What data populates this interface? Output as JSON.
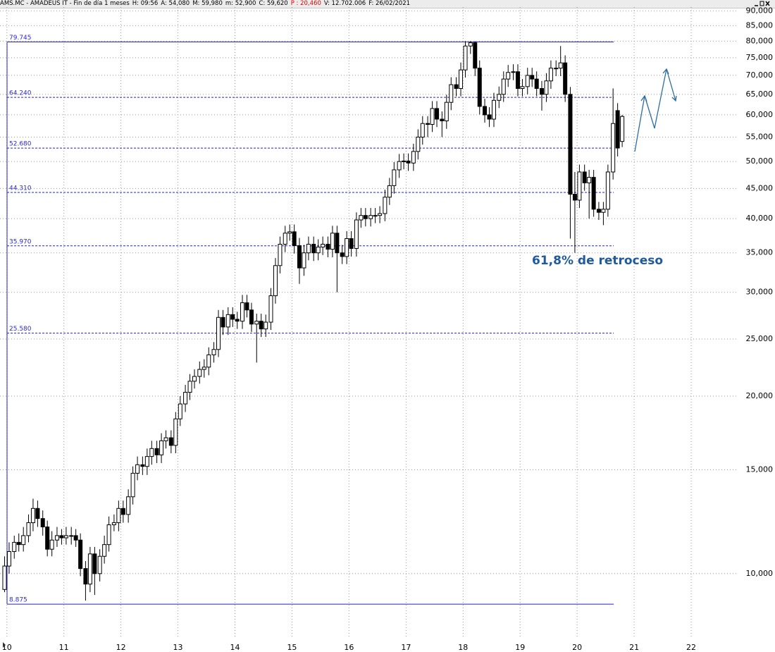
{
  "chart_data": {
    "type": "candlestick",
    "title": "AMS.MC - AMADEUS IT - Fin de día 1 meses",
    "info": [
      "H: 09:56",
      "A: 54,080",
      "M: 59,980",
      "m: 52,900",
      "C: 59,620",
      "P : 20,460",
      "V: 12.702.006",
      "F: 26/02/2021"
    ],
    "log_scale": true,
    "grid": true,
    "up_color": "#ffffff",
    "down_color": "#000000",
    "xlim": [
      9.88,
      22.79
    ],
    "xticks": [
      10,
      11,
      12,
      13,
      14,
      15,
      16,
      17,
      18,
      19,
      20,
      21,
      22
    ],
    "ylim": [
      7780,
      91400
    ],
    "yticks": [
      {
        "value": 10000,
        "label": "10,000"
      },
      {
        "value": 15000,
        "label": "15,000"
      },
      {
        "value": 20000,
        "label": "20,000"
      },
      {
        "value": 25000,
        "label": "25,000"
      },
      {
        "value": 30000,
        "label": "30,000"
      },
      {
        "value": 35000,
        "label": "35,000"
      },
      {
        "value": 40000,
        "label": "40,000"
      },
      {
        "value": 45000,
        "label": "45,000"
      },
      {
        "value": 50000,
        "label": "50,000"
      },
      {
        "value": 55000,
        "label": "55,000"
      },
      {
        "value": 60000,
        "label": "60,000"
      },
      {
        "value": 65000,
        "label": "65,000"
      },
      {
        "value": 70000,
        "label": "70,000"
      },
      {
        "value": 75000,
        "label": "75,000"
      },
      {
        "value": 80000,
        "label": "80,000"
      },
      {
        "value": 85000,
        "label": "85,000"
      },
      {
        "value": 90000,
        "label": "90,000"
      }
    ],
    "levels": [
      {
        "value": 79745,
        "label": "79.745",
        "style": "solid"
      },
      {
        "value": 64240,
        "label": "64.240",
        "style": "dashed"
      },
      {
        "value": 52680,
        "label": "52.680",
        "style": "dashed"
      },
      {
        "value": 44310,
        "label": "44.310",
        "style": "dashed"
      },
      {
        "value": 35970,
        "label": "35.970",
        "style": "dashed"
      },
      {
        "value": 25580,
        "label": "25.580",
        "style": "dashed"
      },
      {
        "value": 8875,
        "label": "8.875",
        "style": "solid"
      }
    ],
    "annotation": "61,8% de retroceso",
    "x": [
      9.96,
      10.04,
      10.13,
      10.21,
      10.29,
      10.38,
      10.46,
      10.54,
      10.63,
      10.71,
      10.79,
      10.88,
      10.96,
      11.04,
      11.13,
      11.21,
      11.29,
      11.38,
      11.46,
      11.54,
      11.63,
      11.71,
      11.79,
      11.88,
      11.96,
      12.04,
      12.13,
      12.21,
      12.29,
      12.38,
      12.46,
      12.54,
      12.63,
      12.71,
      12.79,
      12.88,
      12.96,
      13.04,
      13.13,
      13.21,
      13.29,
      13.38,
      13.46,
      13.54,
      13.63,
      13.71,
      13.79,
      13.88,
      13.96,
      14.04,
      14.13,
      14.21,
      14.29,
      14.38,
      14.46,
      14.54,
      14.63,
      14.71,
      14.79,
      14.88,
      14.96,
      15.04,
      15.13,
      15.21,
      15.29,
      15.38,
      15.46,
      15.54,
      15.63,
      15.71,
      15.79,
      15.88,
      15.96,
      16.04,
      16.13,
      16.21,
      16.29,
      16.38,
      16.46,
      16.54,
      16.63,
      16.71,
      16.79,
      16.88,
      16.96,
      17.04,
      17.13,
      17.21,
      17.29,
      17.38,
      17.46,
      17.54,
      17.63,
      17.71,
      17.79,
      17.88,
      17.96,
      18.04,
      18.13,
      18.21,
      18.29,
      18.38,
      18.46,
      18.54,
      18.63,
      18.71,
      18.79,
      18.88,
      18.96,
      19.04,
      19.13,
      19.21,
      19.29,
      19.38,
      19.46,
      19.54,
      19.63,
      19.71,
      19.79,
      19.88,
      19.96,
      20.04,
      20.13,
      20.21,
      20.29,
      20.38,
      20.46,
      20.54,
      20.63,
      20.71,
      20.79
    ],
    "open": [
      9400,
      10300,
      10900,
      11300,
      11200,
      11600,
      12200,
      12900,
      12400,
      12000,
      11000,
      11400,
      11600,
      11500,
      11600,
      11600,
      11400,
      10200,
      9600,
      10800,
      10000,
      10700,
      11200,
      12100,
      12200,
      12900,
      12600,
      13500,
      14800,
      15300,
      15200,
      15800,
      16300,
      15900,
      16800,
      17000,
      16500,
      18300,
      19400,
      20300,
      21200,
      21600,
      22200,
      22400,
      23500,
      24000,
      27200,
      26200,
      27500,
      27000,
      26800,
      28800,
      28000,
      26500,
      26800,
      26000,
      26700,
      29600,
      33300,
      36200,
      37800,
      38000,
      36000,
      33000,
      35000,
      36200,
      35000,
      35800,
      36200,
      35500,
      37800,
      35000,
      34500,
      37000,
      35600,
      39800,
      40500,
      40000,
      40500,
      40500,
      40800,
      43500,
      45500,
      48400,
      50000,
      50100,
      49700,
      52000,
      55000,
      58000,
      57800,
      61500,
      59000,
      58600,
      63000,
      67500,
      66500,
      71500,
      78500,
      79500,
      72000,
      62000,
      60000,
      59000,
      63500,
      65000,
      69000,
      70800,
      71000,
      66500,
      67000,
      70000,
      69000,
      66500,
      65000,
      68500,
      72000,
      72000,
      73500,
      65000,
      44000,
      43000,
      48000,
      46000,
      47000,
      41500,
      41000,
      41500,
      48000,
      61000,
      54080
    ],
    "high": [
      10700,
      11300,
      11600,
      11700,
      12000,
      12600,
      13400,
      13300,
      12800,
      12300,
      11800,
      12000,
      11900,
      12000,
      12000,
      11900,
      11700,
      10500,
      11100,
      11100,
      11000,
      11600,
      12500,
      12600,
      13300,
      13300,
      13900,
      15200,
      15800,
      15800,
      16300,
      16800,
      16800,
      17300,
      17500,
      17500,
      18800,
      20000,
      20900,
      21800,
      22200,
      22900,
      23100,
      24200,
      24700,
      28000,
      28000,
      28300,
      28300,
      27800,
      29700,
      29700,
      28800,
      27600,
      27600,
      27500,
      30500,
      34300,
      37300,
      38900,
      39100,
      39100,
      37100,
      36100,
      37300,
      37300,
      36900,
      37300,
      37300,
      38900,
      38900,
      36100,
      38100,
      38100,
      41000,
      41700,
      41700,
      41700,
      41700,
      42000,
      44800,
      46900,
      49900,
      51500,
      51600,
      51600,
      53600,
      56700,
      59700,
      59700,
      63300,
      63300,
      60800,
      64900,
      69500,
      69500,
      73600,
      80000,
      80000,
      80000,
      74200,
      63900,
      61800,
      65400,
      67000,
      71100,
      72900,
      73100,
      73100,
      69000,
      72100,
      72100,
      71100,
      68500,
      70600,
      74200,
      74200,
      78500,
      75700,
      66900,
      48000,
      49400,
      49400,
      48400,
      48400,
      42700,
      42700,
      49400,
      66500,
      62800,
      59980
    ],
    "low": [
      9300,
      10000,
      10600,
      10900,
      10900,
      11300,
      11800,
      12000,
      11600,
      10700,
      10700,
      11100,
      11200,
      11200,
      11200,
      11100,
      9900,
      9000,
      9300,
      9200,
      9700,
      10400,
      10900,
      11800,
      11800,
      12200,
      12200,
      13100,
      14400,
      14700,
      14700,
      15300,
      15400,
      15400,
      16300,
      16000,
      16000,
      17800,
      18800,
      19700,
      20600,
      21000,
      21500,
      21700,
      22800,
      23300,
      25400,
      25400,
      26200,
      26000,
      26000,
      27200,
      25700,
      22800,
      25200,
      25200,
      25900,
      28700,
      32300,
      35100,
      36700,
      34900,
      31000,
      32000,
      34000,
      33900,
      34000,
      34700,
      34400,
      34400,
      30000,
      33500,
      33500,
      34500,
      34500,
      38600,
      38800,
      38800,
      39300,
      39300,
      39600,
      42200,
      44100,
      46900,
      48500,
      48200,
      48200,
      50400,
      53400,
      55000,
      56100,
      57200,
      55000,
      56800,
      61100,
      64500,
      64500,
      69400,
      76100,
      69800,
      60100,
      58200,
      57200,
      57200,
      61600,
      63100,
      66900,
      68700,
      64500,
      64500,
      65000,
      66900,
      64500,
      61000,
      63100,
      66400,
      69800,
      69800,
      63100,
      37000,
      35000,
      41700,
      44600,
      40000,
      40300,
      39800,
      39000,
      40300,
      46600,
      51000,
      52900
    ],
    "close": [
      10300,
      10900,
      11300,
      11200,
      11600,
      12200,
      12900,
      12400,
      12000,
      11000,
      11400,
      11600,
      11500,
      11600,
      11600,
      11400,
      10200,
      9600,
      10800,
      10000,
      10700,
      11200,
      12100,
      12200,
      12900,
      12600,
      13500,
      14800,
      15300,
      15200,
      15800,
      16300,
      15900,
      16800,
      17000,
      16500,
      18300,
      19400,
      20300,
      21200,
      21600,
      22200,
      22400,
      23500,
      24000,
      27200,
      26200,
      27500,
      27000,
      26800,
      28800,
      28000,
      26500,
      26800,
      26000,
      26700,
      29600,
      33300,
      36200,
      37800,
      38000,
      36000,
      33000,
      35000,
      36200,
      35000,
      35800,
      36200,
      35500,
      37800,
      35000,
      34500,
      37000,
      35600,
      39800,
      40500,
      40000,
      40500,
      40500,
      40800,
      43500,
      45500,
      48400,
      50000,
      50100,
      49700,
      52000,
      55000,
      58000,
      57800,
      61500,
      59000,
      58600,
      63000,
      67500,
      66500,
      71500,
      78500,
      79500,
      72000,
      62000,
      60000,
      59000,
      63500,
      65000,
      69000,
      70800,
      71000,
      66500,
      67000,
      70000,
      69000,
      66500,
      65000,
      68500,
      72000,
      72000,
      73500,
      65000,
      44000,
      43000,
      48000,
      46000,
      47000,
      41500,
      41000,
      41500,
      48000,
      58000,
      52700,
      59620
    ]
  }
}
